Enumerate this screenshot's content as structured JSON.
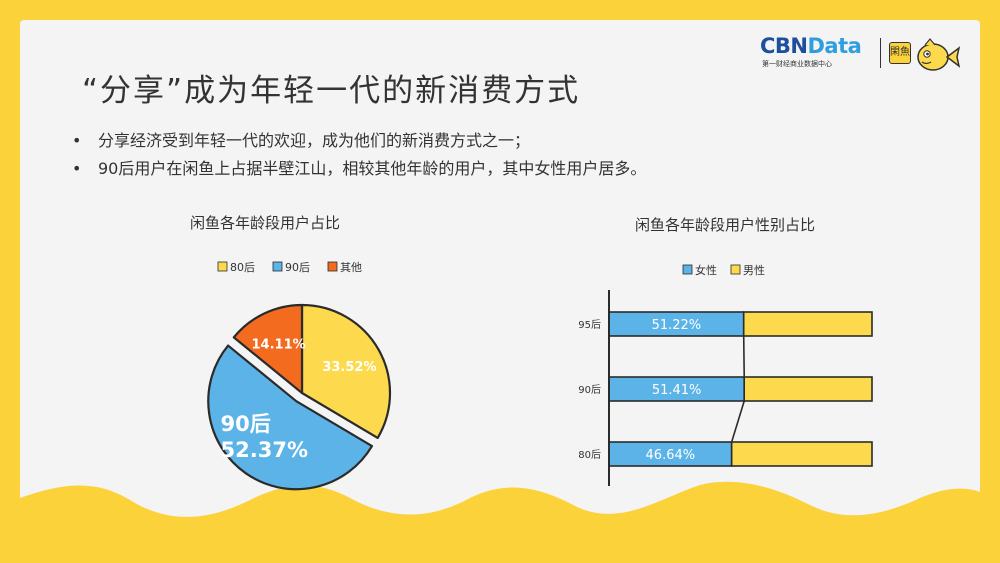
{
  "title": "“分享”成为年轻一代的新消费方式",
  "bullets": [
    "分享经济受到年轻一代的欢迎，成为他们的新消费方式之一；",
    "90后用户在闲鱼上占据半壁江山，相较其他年龄的用户，其中女性用户居多。"
  ],
  "logo": {
    "brand_main": "CBN",
    "brand_accent": "Data",
    "tagline": "第一财经商业数据中心",
    "app_mark": "閑魚"
  },
  "colors": {
    "background": "#fbd23a",
    "panel": "#f4f4f4",
    "yellow": "#fdd94d",
    "blue": "#5cb3e8",
    "orange": "#f26b1f",
    "outline": "#2b2b2b"
  },
  "chart_data": [
    {
      "type": "pie",
      "title": "闲鱼各年龄段用户占比",
      "legend_position": "top",
      "slices": [
        {
          "name": "80后",
          "value": 33.52,
          "label": "33.52%",
          "color": "#fdd94d"
        },
        {
          "name": "90后",
          "value": 52.37,
          "label": "52.37%",
          "color": "#5cb3e8",
          "exploded": true
        },
        {
          "name": "其他",
          "value": 14.11,
          "label": "14.11%",
          "color": "#f26b1f"
        }
      ]
    },
    {
      "type": "bar",
      "orientation": "horizontal",
      "stacked": true,
      "title": "闲鱼各年龄段用户性别占比",
      "legend_position": "top",
      "categories": [
        "95后",
        "90后",
        "80后"
      ],
      "xlim": [
        0,
        100
      ],
      "series": [
        {
          "name": "女性",
          "values": [
            51.22,
            51.41,
            46.64
          ],
          "labels": [
            "51.22%",
            "51.41%",
            "46.64%"
          ],
          "color": "#5cb3e8"
        },
        {
          "name": "男性",
          "values": [
            48.78,
            48.59,
            53.36
          ],
          "color": "#fdd94d"
        }
      ]
    }
  ]
}
